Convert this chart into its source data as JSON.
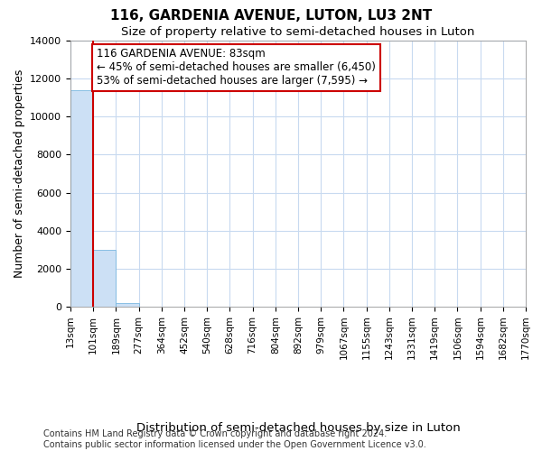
{
  "title": "116, GARDENIA AVENUE, LUTON, LU3 2NT",
  "subtitle": "Size of property relative to semi-detached houses in Luton",
  "xlabel": "Distribution of semi-detached houses by size in Luton",
  "ylabel": "Number of semi-detached properties",
  "footer1": "Contains HM Land Registry data © Crown copyright and database right 2024.",
  "footer2": "Contains public sector information licensed under the Open Government Licence v3.0.",
  "annotation_line1": "116 GARDENIA AVENUE: 83sqm",
  "annotation_line2": "← 45% of semi-detached houses are smaller (6,450)",
  "annotation_line3": "53% of semi-detached houses are larger (7,595) →",
  "bar_values": [
    11400,
    3000,
    200,
    0,
    0,
    0,
    0,
    0,
    0,
    0,
    0,
    0,
    0,
    0,
    0,
    0,
    0,
    0,
    0,
    0
  ],
  "bin_labels": [
    "13sqm",
    "101sqm",
    "189sqm",
    "277sqm",
    "364sqm",
    "452sqm",
    "540sqm",
    "628sqm",
    "716sqm",
    "804sqm",
    "892sqm",
    "979sqm",
    "1067sqm",
    "1155sqm",
    "1243sqm",
    "1331sqm",
    "1419sqm",
    "1506sqm",
    "1594sqm",
    "1682sqm",
    "1770sqm"
  ],
  "bar_color": "#cce0f5",
  "bar_edge_color": "#7ab8e0",
  "property_line_color": "#cc0000",
  "annotation_box_color": "#cc0000",
  "ylim": [
    0,
    14000
  ],
  "yticks": [
    0,
    2000,
    4000,
    6000,
    8000,
    10000,
    12000,
    14000
  ],
  "title_fontsize": 11,
  "subtitle_fontsize": 9.5,
  "ylabel_fontsize": 9,
  "xlabel_fontsize": 9.5,
  "tick_fontsize": 7.5,
  "annotation_fontsize": 8.5,
  "footer_fontsize": 7,
  "bg_color": "#ffffff",
  "grid_color": "#c8daf0"
}
